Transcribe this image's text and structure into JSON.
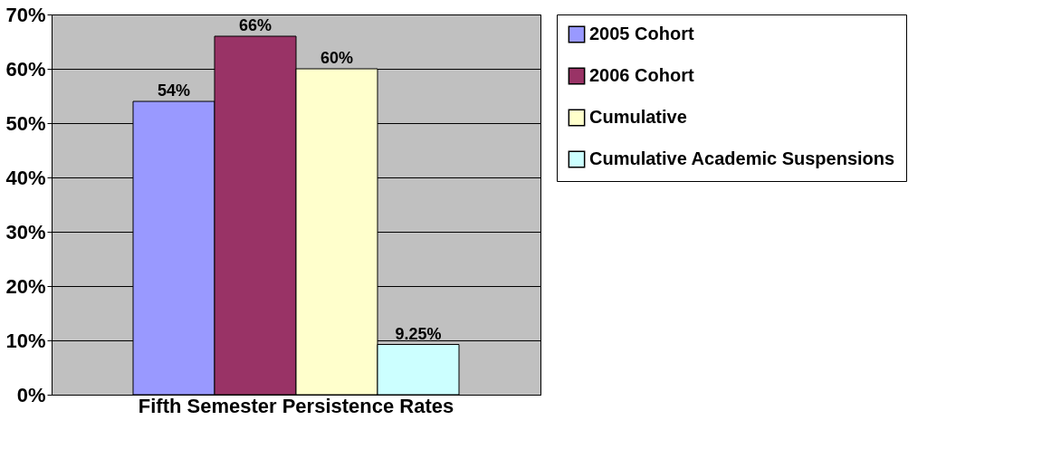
{
  "chart_data": {
    "type": "bar",
    "categories": [
      "Fifth Semester Persistence Rates"
    ],
    "series": [
      {
        "name": "2005 Cohort",
        "color": "#9999ff",
        "values": [
          54
        ],
        "value_labels": [
          "54%"
        ]
      },
      {
        "name": "2006 Cohort",
        "color": "#993366",
        "values": [
          66
        ],
        "value_labels": [
          "66%"
        ]
      },
      {
        "name": "Cumulative",
        "color": "#ffffcc",
        "values": [
          60
        ],
        "value_labels": [
          "60%"
        ]
      },
      {
        "name": "Cumulative Academic Suspensions",
        "color": "#ccffff",
        "values": [
          9.25
        ],
        "value_labels": [
          "9.25%"
        ]
      }
    ],
    "ylim": [
      0,
      70
    ],
    "yticks": [
      {
        "value": 0,
        "label": "0%"
      },
      {
        "value": 10,
        "label": "10%"
      },
      {
        "value": 20,
        "label": "20%"
      },
      {
        "value": 30,
        "label": "30%"
      },
      {
        "value": 40,
        "label": "40%"
      },
      {
        "value": 50,
        "label": "50%"
      },
      {
        "value": 60,
        "label": "60%"
      },
      {
        "value": 70,
        "label": "70%"
      }
    ],
    "grid": "y",
    "legend": "right"
  }
}
